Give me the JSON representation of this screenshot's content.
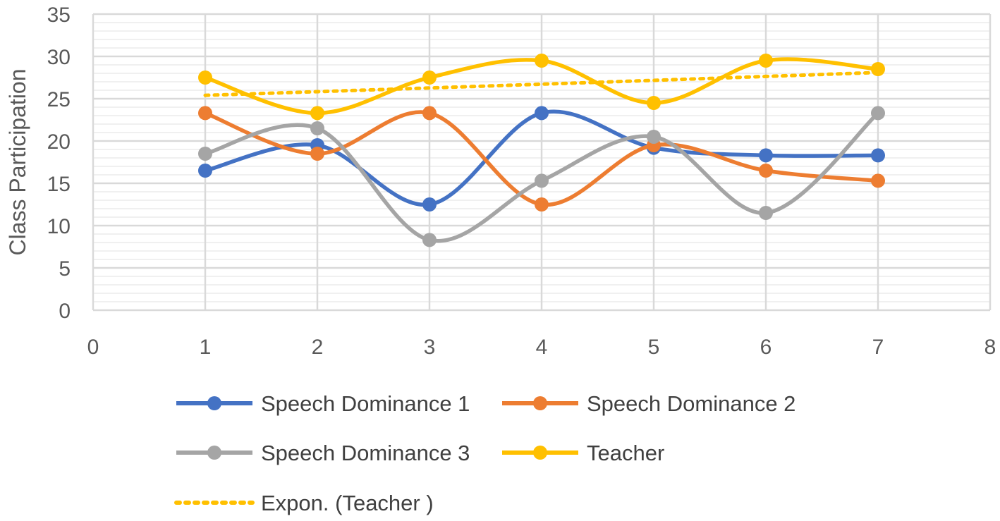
{
  "chart_data": {
    "type": "scatter",
    "title": "",
    "xlabel": "",
    "ylabel": "Class Participation",
    "xlim": [
      0,
      8
    ],
    "ylim": [
      0,
      35
    ],
    "x_ticks": [
      0,
      1,
      2,
      3,
      4,
      5,
      6,
      7,
      8
    ],
    "y_ticks": [
      0,
      5,
      10,
      15,
      20,
      25,
      30,
      35
    ],
    "grid": true,
    "minor_grid": true,
    "smoothed_lines": true,
    "legend_position": "bottom",
    "series": [
      {
        "name": "Speech Dominance 1",
        "color": "#4472C4",
        "x": [
          1,
          2,
          3,
          4,
          5,
          6,
          7
        ],
        "y": [
          16.5,
          19.5,
          12.5,
          23.3,
          19.2,
          18.3,
          18.3
        ]
      },
      {
        "name": "Speech Dominance 2",
        "color": "#ED7D31",
        "x": [
          1,
          2,
          3,
          4,
          5,
          6,
          7
        ],
        "y": [
          23.3,
          18.5,
          23.3,
          12.5,
          19.5,
          16.5,
          15.3
        ]
      },
      {
        "name": "Speech Dominance 3",
        "color": "#A5A5A5",
        "x": [
          1,
          2,
          3,
          4,
          5,
          6,
          7
        ],
        "y": [
          18.5,
          21.5,
          8.3,
          15.3,
          20.5,
          11.5,
          23.3
        ]
      },
      {
        "name": "Teacher",
        "color": "#FFC000",
        "x": [
          1,
          2,
          3,
          4,
          5,
          6,
          7
        ],
        "y": [
          27.5,
          23.3,
          27.5,
          29.5,
          24.5,
          29.5,
          28.5
        ]
      }
    ],
    "trendline": {
      "name": "Expon. (Teacher )",
      "type": "exponential",
      "of_series": "Teacher",
      "color": "#FFC000",
      "style": "dotted",
      "x": [
        1,
        7
      ],
      "y": [
        25.4,
        28.1
      ]
    }
  },
  "colors": {
    "grid": "#d9d9d9",
    "text": "#595959"
  }
}
